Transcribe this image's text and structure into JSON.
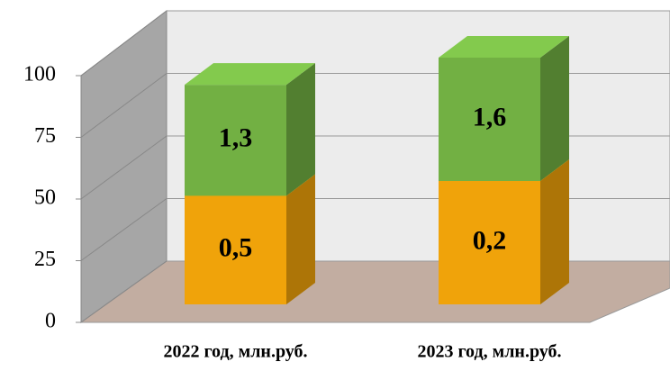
{
  "chart_data": {
    "type": "bar3d_stacked",
    "categories": [
      "2022 год, млн.руб.",
      "2023 год, млн.руб."
    ],
    "series": [
      {
        "color": "#f0a30a",
        "values": [
          44,
          50
        ],
        "data_labels": [
          "0,5",
          "0,2"
        ]
      },
      {
        "color": "#72b043",
        "values": [
          45,
          50
        ],
        "data_labels": [
          "1,3",
          "1,6"
        ]
      }
    ],
    "ylim": [
      0,
      100
    ],
    "yticks": [
      0,
      25,
      50,
      75,
      100
    ],
    "grid": true
  }
}
